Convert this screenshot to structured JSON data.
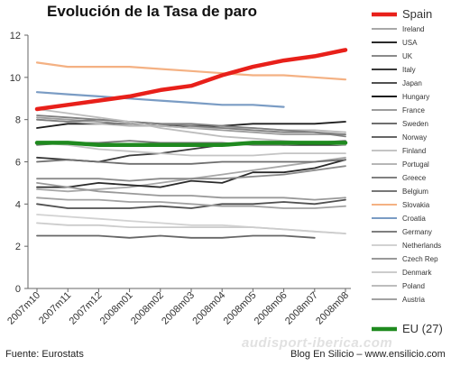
{
  "chart_data": {
    "type": "line",
    "title": "Evolución de la Tasa de paro",
    "categories": [
      "2007m10",
      "2007m11",
      "2007m12",
      "2008m01",
      "2008m02",
      "2008m03",
      "2008m04",
      "2008m05",
      "2008m06",
      "2008m07",
      "2008m08"
    ],
    "ylim": [
      0,
      12
    ],
    "yticks": [
      0,
      2,
      4,
      6,
      8,
      10,
      12
    ],
    "grid": false,
    "legend_placement": "right",
    "series": [
      {
        "name": "Spain",
        "color": "#e8201a",
        "highlight": true,
        "values": [
          8.5,
          8.7,
          8.9,
          9.1,
          9.4,
          9.6,
          10.1,
          10.5,
          10.8,
          11.0,
          11.3
        ]
      },
      {
        "name": "Ireland",
        "color": "#a8a8a8",
        "values": [
          4.7,
          4.6,
          4.7,
          4.8,
          5.0,
          5.2,
          5.4,
          5.6,
          5.8,
          6.0,
          6.2
        ]
      },
      {
        "name": "USA",
        "color": "#2a2a2a",
        "values": [
          4.8,
          4.8,
          5.0,
          4.9,
          4.8,
          5.1,
          5.0,
          5.5,
          5.5,
          5.7,
          6.1
        ]
      },
      {
        "name": "UK",
        "color": "#8a8a8a",
        "values": [
          5.2,
          5.2,
          5.2,
          5.1,
          5.2,
          5.2,
          5.2,
          5.3,
          5.4,
          5.6,
          5.8
        ]
      },
      {
        "name": "Italy",
        "color": "#3a3a3a",
        "values": [
          6.2,
          6.1,
          6.0,
          6.3,
          6.4,
          6.6,
          6.8,
          6.9,
          6.8,
          6.8,
          6.8
        ]
      },
      {
        "name": "Japan",
        "color": "#505050",
        "values": [
          4.0,
          3.8,
          3.8,
          3.8,
          3.9,
          3.8,
          4.0,
          4.0,
          4.1,
          4.0,
          4.2
        ]
      },
      {
        "name": "Hungary",
        "color": "#1e1e1e",
        "values": [
          7.6,
          7.8,
          7.8,
          7.8,
          7.7,
          7.7,
          7.7,
          7.8,
          7.8,
          7.8,
          7.9
        ]
      },
      {
        "name": "France",
        "color": "#9c9c9c",
        "values": [
          8.1,
          8.0,
          7.9,
          7.8,
          7.7,
          7.6,
          7.5,
          7.4,
          7.3,
          7.3,
          7.3
        ]
      },
      {
        "name": "Sweden",
        "color": "#6e6e6e",
        "values": [
          6.0,
          6.1,
          6.0,
          5.9,
          5.9,
          5.9,
          6.0,
          6.0,
          6.0,
          6.0,
          6.1
        ]
      },
      {
        "name": "Norway",
        "color": "#666666",
        "values": [
          2.5,
          2.5,
          2.5,
          2.4,
          2.5,
          2.4,
          2.4,
          2.5,
          2.5,
          2.4,
          null
        ]
      },
      {
        "name": "Finland",
        "color": "#c4c4c4",
        "values": [
          6.9,
          6.8,
          6.6,
          6.5,
          6.4,
          6.3,
          6.3,
          6.3,
          6.4,
          6.4,
          6.4
        ]
      },
      {
        "name": "Portugal",
        "color": "#b6b6b6",
        "values": [
          8.0,
          7.9,
          7.8,
          7.7,
          7.7,
          7.6,
          7.6,
          7.6,
          7.5,
          7.5,
          7.4
        ]
      },
      {
        "name": "Greece",
        "color": "#808080",
        "values": [
          8.0,
          7.9,
          8.0,
          7.9,
          7.8,
          7.8,
          7.7,
          7.6,
          7.5,
          7.4,
          7.2
        ]
      },
      {
        "name": "Belgium",
        "color": "#777777",
        "values": [
          6.8,
          6.9,
          6.9,
          7.0,
          6.9,
          6.9,
          6.9,
          6.8,
          6.8,
          6.9,
          7.0
        ]
      },
      {
        "name": "Slovakia",
        "color": "#f4b183",
        "values": [
          10.7,
          10.5,
          10.5,
          10.5,
          10.4,
          10.3,
          10.2,
          10.1,
          10.1,
          10.0,
          9.9
        ]
      },
      {
        "name": "Croatia",
        "color": "#7a9cc4",
        "values": [
          9.3,
          9.2,
          9.1,
          9.0,
          8.9,
          8.8,
          8.7,
          8.7,
          8.6,
          null,
          null
        ]
      },
      {
        "name": "Germany",
        "color": "#7f7f7f",
        "values": [
          8.2,
          8.1,
          8.0,
          7.9,
          7.8,
          7.7,
          7.6,
          7.5,
          7.4,
          7.4,
          7.3
        ]
      },
      {
        "name": "Netherlands",
        "color": "#d2d2d2",
        "values": [
          3.5,
          3.4,
          3.3,
          3.2,
          3.1,
          3.0,
          3.0,
          2.9,
          2.8,
          2.7,
          2.6
        ]
      },
      {
        "name": "Czech Rep",
        "color": "#999999",
        "values": [
          5.0,
          4.8,
          4.6,
          4.5,
          4.4,
          4.4,
          4.3,
          4.3,
          4.3,
          4.2,
          4.3
        ]
      },
      {
        "name": "Denmark",
        "color": "#cccccc",
        "values": [
          3.1,
          3.0,
          3.0,
          2.9,
          2.9,
          2.9,
          2.9,
          2.9,
          2.8,
          2.7,
          2.6
        ]
      },
      {
        "name": "Poland",
        "color": "#bdbdbd",
        "values": [
          8.5,
          8.3,
          8.1,
          7.9,
          7.6,
          7.4,
          7.2,
          7.1,
          7.0,
          6.9,
          6.8
        ]
      },
      {
        "name": "Austria",
        "color": "#a2a2a2",
        "values": [
          4.3,
          4.2,
          4.2,
          4.1,
          4.1,
          4.0,
          3.9,
          3.9,
          3.8,
          3.8,
          3.9
        ]
      },
      {
        "name": "EU (27)",
        "color": "#1f8a1f",
        "highlight": true,
        "values": [
          6.9,
          6.9,
          6.8,
          6.8,
          6.8,
          6.8,
          6.8,
          6.9,
          6.9,
          6.9,
          6.9
        ]
      }
    ]
  },
  "footer": {
    "source": "Fuente: Eurostats",
    "credit": "Blog En Silicio – www.ensilicio.com",
    "watermark": "audisport-iberica.com"
  }
}
